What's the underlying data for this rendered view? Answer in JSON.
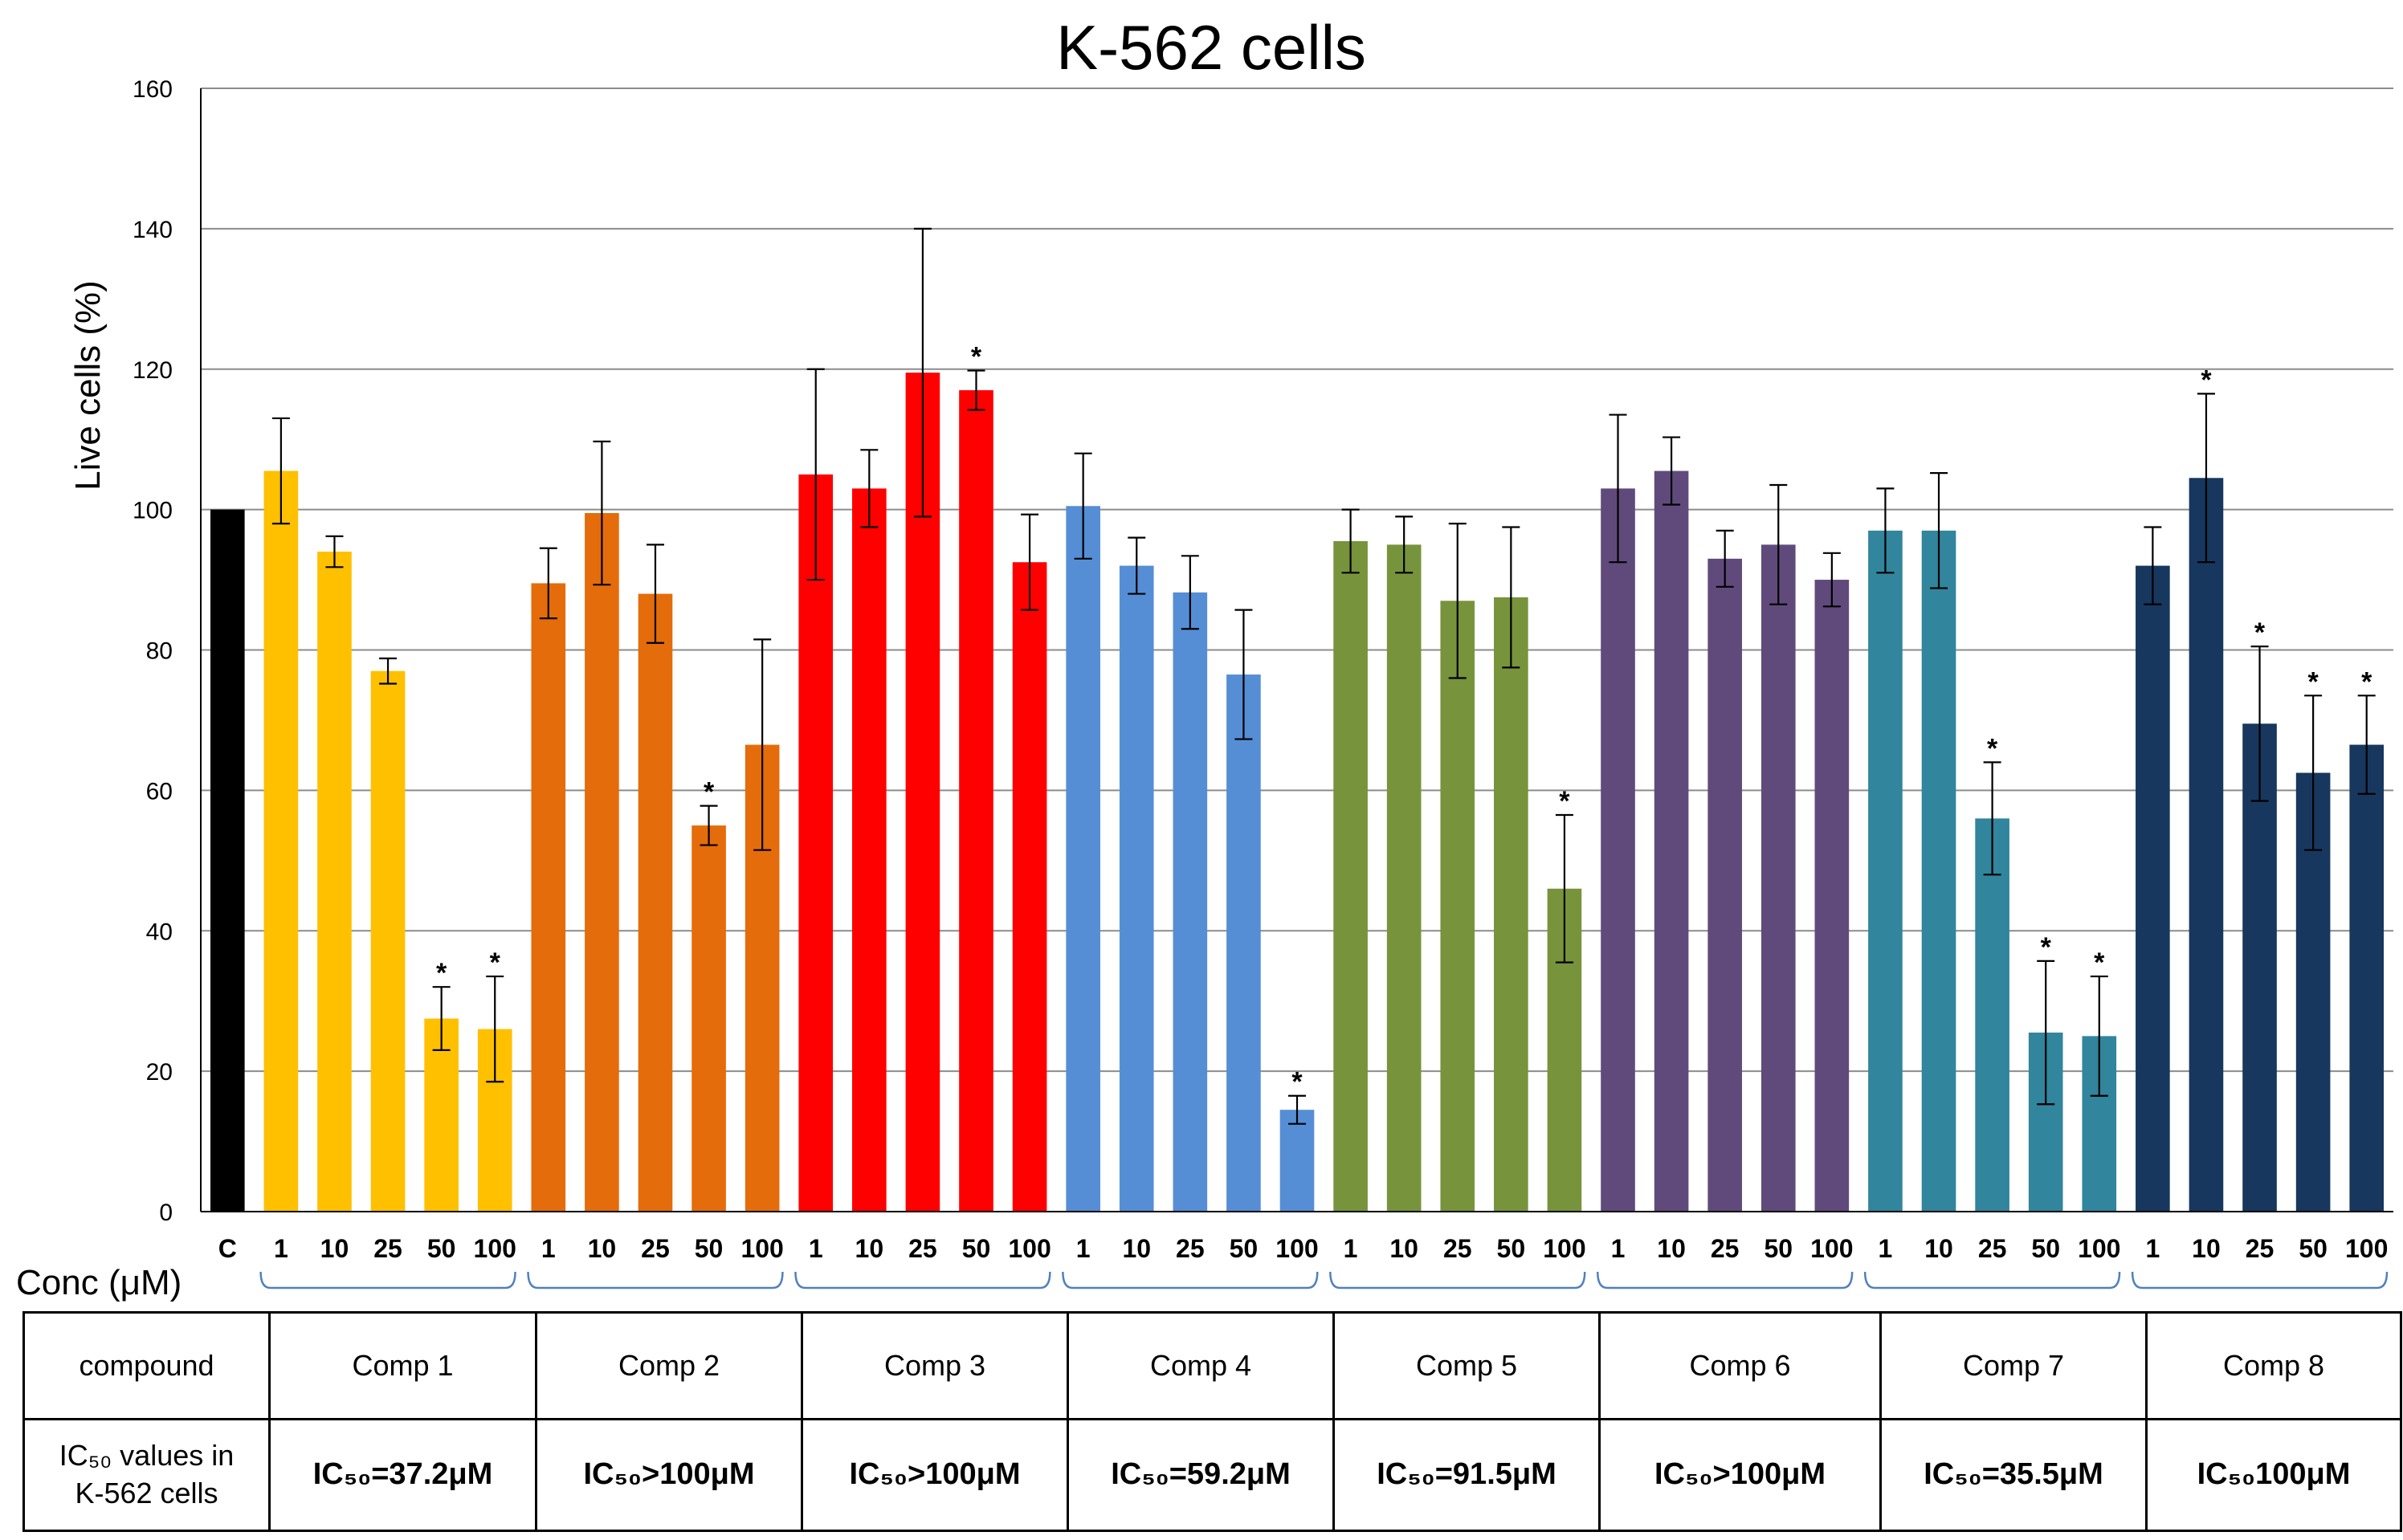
{
  "chart_data": {
    "type": "bar",
    "title": "K-562 cells",
    "ylabel": "Live cells (%)",
    "xlabel": "Conc (μM)",
    "ylim": [
      0,
      160
    ],
    "yticks": [
      0,
      20,
      40,
      60,
      80,
      100,
      120,
      140,
      160
    ],
    "grid": true,
    "control": {
      "label": "C",
      "value": 100,
      "color": "#000000"
    },
    "concentrations": [
      "1",
      "10",
      "25",
      "50",
      "100"
    ],
    "groups": [
      {
        "name": "Comp 1",
        "color": "#FFC000",
        "values": [
          105.5,
          94,
          77,
          27.5,
          26
        ],
        "errors": [
          7.5,
          2.2,
          1.8,
          4.5,
          7.5
        ],
        "significant": [
          false,
          false,
          false,
          true,
          true
        ]
      },
      {
        "name": "Comp 2",
        "color": "#E46C0A",
        "values": [
          89.5,
          99.5,
          88,
          55,
          66.5
        ],
        "errors": [
          5,
          10.2,
          7,
          2.8,
          15
        ],
        "significant": [
          false,
          false,
          false,
          true,
          false
        ]
      },
      {
        "name": "Comp 3",
        "color": "#FF0000",
        "values": [
          105,
          103,
          119.5,
          117,
          92.5
        ],
        "errors": [
          15,
          5.5,
          20.5,
          2.8,
          6.8
        ],
        "significant": [
          false,
          false,
          false,
          true,
          false
        ]
      },
      {
        "name": "Comp 4",
        "color": "#558ED5",
        "values": [
          100.5,
          92,
          88.2,
          76.5,
          14.5
        ],
        "errors": [
          7.5,
          4,
          5.2,
          9.2,
          2
        ],
        "significant": [
          false,
          false,
          false,
          false,
          true
        ]
      },
      {
        "name": "Comp 5",
        "color": "#77933C",
        "values": [
          95.5,
          95,
          87,
          87.5,
          46
        ],
        "errors": [
          4.5,
          4,
          11,
          10,
          10.5
        ],
        "significant": [
          false,
          false,
          false,
          false,
          true
        ]
      },
      {
        "name": "Comp 6",
        "color": "#604A7B",
        "values": [
          103,
          105.5,
          93,
          95,
          90
        ],
        "errors": [
          10.5,
          4.8,
          4,
          8.5,
          3.8
        ],
        "significant": [
          false,
          false,
          false,
          false,
          false
        ]
      },
      {
        "name": "Comp 7",
        "color": "#31859C",
        "values": [
          97,
          97,
          56,
          25.5,
          25
        ],
        "errors": [
          6,
          8.2,
          8,
          10.2,
          8.5
        ],
        "significant": [
          false,
          false,
          true,
          true,
          true
        ]
      },
      {
        "name": "Comp 8",
        "color": "#17375E",
        "values": [
          92,
          104.5,
          69.5,
          62.5,
          66.5
        ],
        "errors": [
          5.5,
          12,
          11,
          11,
          7
        ],
        "significant": [
          false,
          true,
          true,
          true,
          true
        ]
      }
    ],
    "significance_marker": "*"
  },
  "table": {
    "header_label": "compound",
    "ic50_label_line1": "IC₅₀ values in",
    "ic50_label_line2": "K-562 cells",
    "compounds": [
      "Comp 1",
      "Comp 2",
      "Comp 3",
      "Comp 4",
      "Comp 5",
      "Comp 6",
      "Comp 7",
      "Comp 8"
    ],
    "ic50_values": [
      "IC₅₀=37.2μM",
      "IC₅₀>100μM",
      "IC₅₀>100μM",
      "IC₅₀=59.2μM",
      "IC₅₀=91.5μM",
      "IC₅₀>100μM",
      "IC₅₀=35.5μM",
      "IC₅₀100μM"
    ]
  }
}
